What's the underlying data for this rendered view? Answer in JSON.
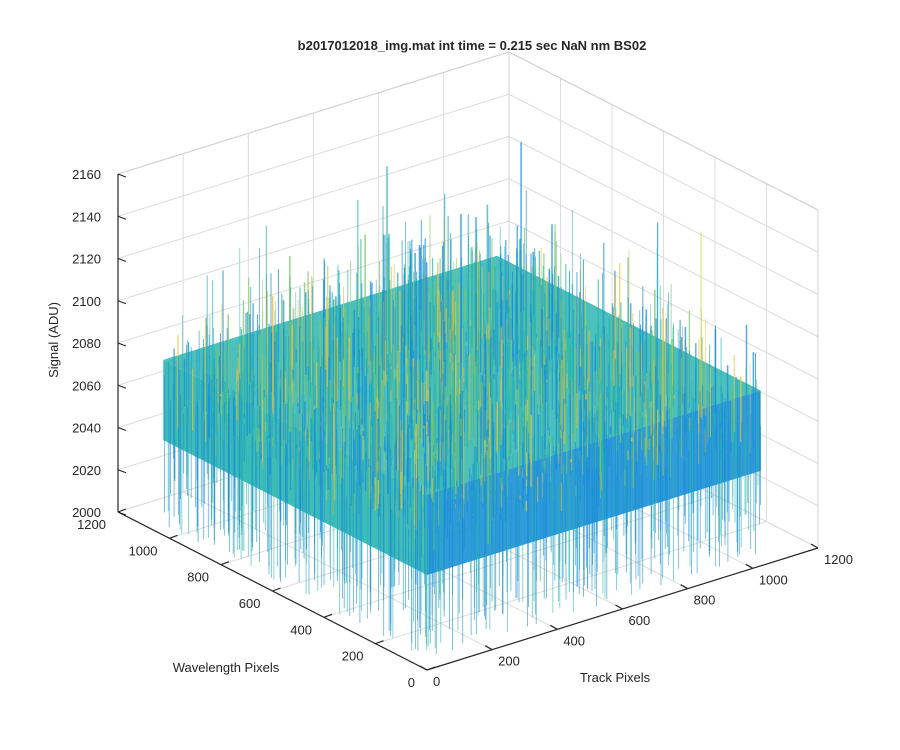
{
  "chart_data": {
    "type": "surface3d",
    "title": "b2017012018_img.mat int time = 0.215 sec  NaN nm BS02",
    "xlabel": "Track Pixels",
    "ylabel": "Wavelength Pixels",
    "zlabel": "Signal (ADU)",
    "xlim": [
      0,
      1200
    ],
    "ylim": [
      0,
      1200
    ],
    "zlim": [
      2000,
      2160
    ],
    "xticks": [
      "0",
      "200",
      "400",
      "600",
      "800",
      "1000",
      "1200"
    ],
    "yticks": [
      "0",
      "200",
      "400",
      "600",
      "800",
      "1000",
      "1200"
    ],
    "zticks": [
      "2000",
      "2020",
      "2040",
      "2060",
      "2080",
      "2100",
      "2120",
      "2140",
      "2160"
    ],
    "surface_extent": {
      "x": [
        0,
        1024
      ],
      "y": [
        0,
        1024
      ]
    },
    "signal_mean": 2075,
    "signal_range": [
      2005,
      2148
    ],
    "grid": true,
    "colormap": "parula",
    "colors": {
      "low": "#1a8fd6",
      "mid": "#2bb5b0",
      "midhigh": "#7cc66a",
      "high": "#e8c23a"
    }
  }
}
